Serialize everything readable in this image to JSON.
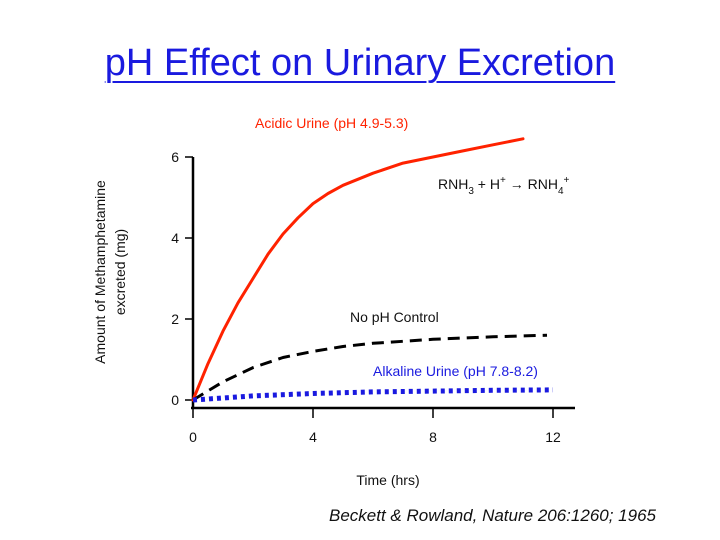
{
  "slide": {
    "title": "pH Effect on Urinary Excretion",
    "citation": "Beckett & Rowland, Nature 206:1260; 1965"
  },
  "chart_data": {
    "type": "line",
    "xlabel": "Time (hrs)",
    "ylabel_line1": "Amount of Methamphetamine",
    "ylabel_line2": "excreted (mg)",
    "xlim": [
      0,
      12
    ],
    "ylim": [
      0,
      6
    ],
    "xticks": [
      0,
      4,
      8,
      12
    ],
    "yticks": [
      0,
      2,
      4,
      6
    ],
    "grid": false,
    "series": [
      {
        "name": "Acidic Urine (pH 4.9-5.3)",
        "color": "#ff2200",
        "style": "solid",
        "x": [
          0,
          0.5,
          1,
          1.5,
          2,
          2.5,
          3,
          3.5,
          4,
          4.5,
          5,
          6,
          7,
          8,
          9,
          10,
          11
        ],
        "y": [
          0,
          0.9,
          1.7,
          2.4,
          3.0,
          3.6,
          4.1,
          4.5,
          4.85,
          5.1,
          5.3,
          5.6,
          5.85,
          6.0,
          6.15,
          6.3,
          6.45
        ]
      },
      {
        "name": "No pH Control",
        "color": "#000000",
        "style": "dashed",
        "x": [
          0,
          1,
          2,
          3,
          4,
          5,
          6,
          7,
          8,
          9,
          10,
          11.8
        ],
        "y": [
          0,
          0.45,
          0.8,
          1.05,
          1.2,
          1.32,
          1.4,
          1.45,
          1.5,
          1.53,
          1.56,
          1.6
        ]
      },
      {
        "name": "Alkaline Urine (pH 7.8-8.2)",
        "color": "#1a1adf",
        "style": "dotted",
        "x": [
          0,
          1,
          2,
          4,
          6,
          8,
          10,
          12
        ],
        "y": [
          0,
          0.05,
          0.1,
          0.16,
          0.2,
          0.22,
          0.24,
          0.25
        ]
      }
    ],
    "annotations": {
      "reaction": {
        "base": "RNH",
        "sub1": "3",
        "plus": " + H",
        "sup1": "+",
        "arrow": "→",
        "product": "RNH",
        "sub2": "4",
        "sup2": "+"
      }
    }
  }
}
